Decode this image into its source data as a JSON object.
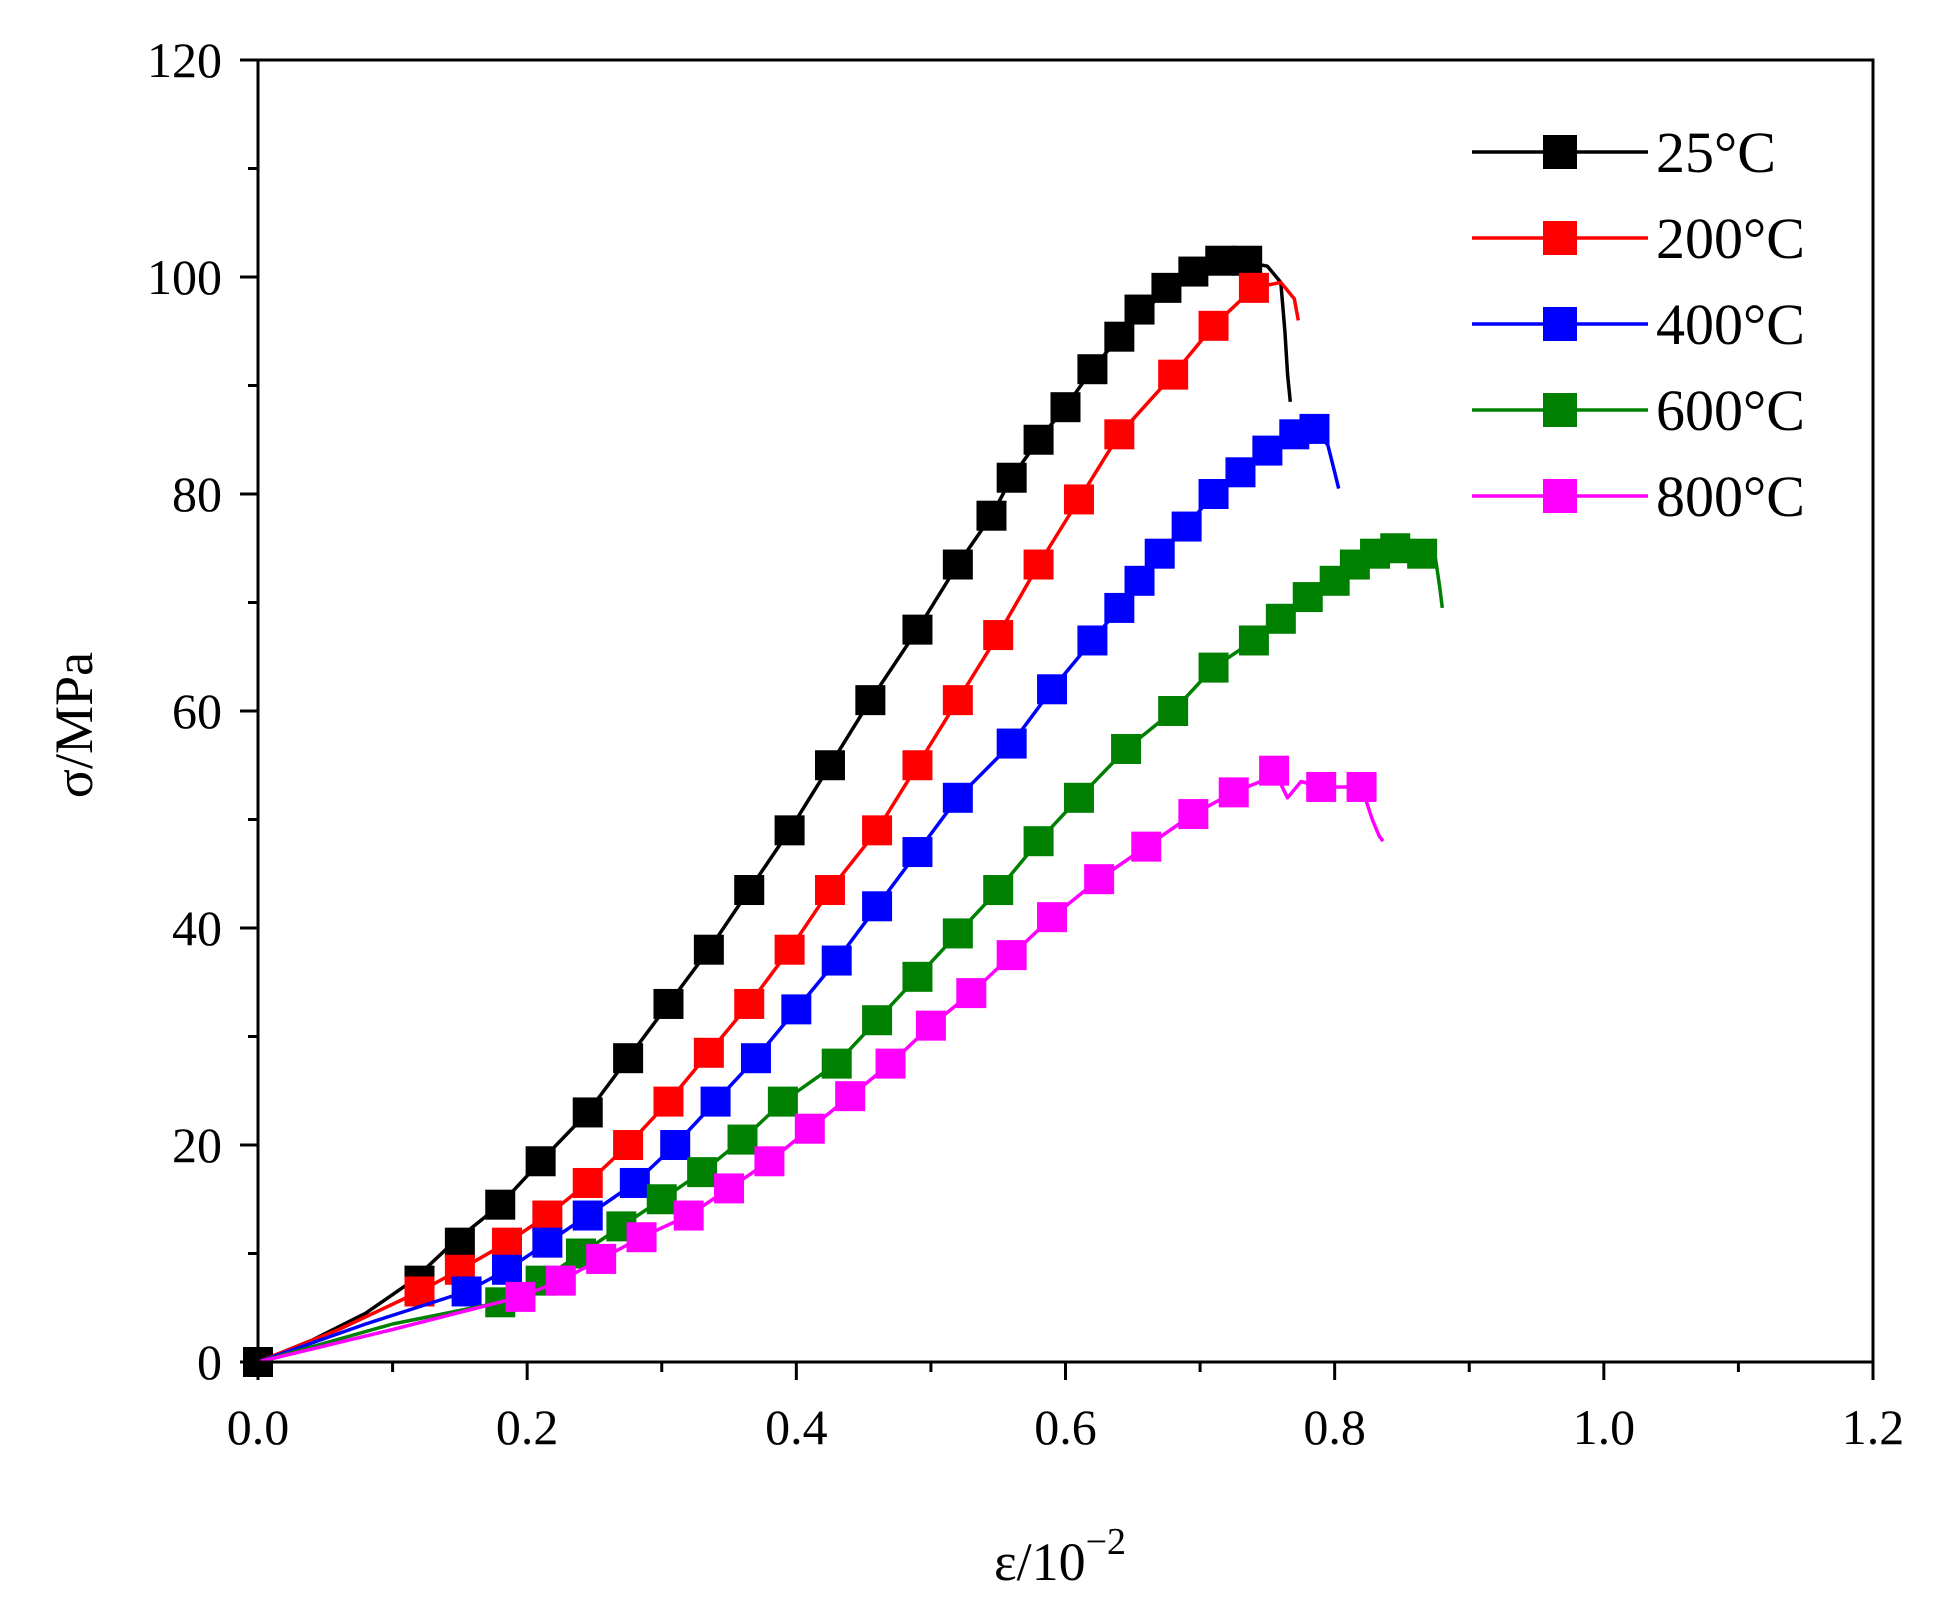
{
  "chart_data": {
    "type": "line",
    "title": "",
    "xlabel": "ε/10",
    "xlabel_exponent": "−2",
    "ylabel": "σ/MPa",
    "xlim": [
      0,
      1.2
    ],
    "ylim": [
      0,
      120
    ],
    "x_ticks": [
      "0.0",
      "0.2",
      "0.4",
      "0.6",
      "0.8",
      "1.0",
      "1.2"
    ],
    "y_ticks": [
      "0",
      "20",
      "40",
      "60",
      "80",
      "100",
      "120"
    ],
    "legend_position": "top-right",
    "series": [
      {
        "name": "25°C",
        "color": "#000000",
        "line": [
          [
            0.0,
            0
          ],
          [
            0.04,
            2
          ],
          [
            0.08,
            4.5
          ],
          [
            0.115,
            7.5
          ],
          [
            0.145,
            11
          ],
          [
            0.18,
            14.5
          ],
          [
            0.21,
            18.5
          ],
          [
            0.245,
            23
          ],
          [
            0.275,
            28
          ],
          [
            0.305,
            33
          ],
          [
            0.335,
            38
          ],
          [
            0.365,
            43.5
          ],
          [
            0.395,
            49
          ],
          [
            0.425,
            55
          ],
          [
            0.455,
            61
          ],
          [
            0.49,
            67.5
          ],
          [
            0.52,
            73.5
          ],
          [
            0.545,
            78
          ],
          [
            0.56,
            81.5
          ],
          [
            0.58,
            85
          ],
          [
            0.6,
            88
          ],
          [
            0.62,
            91.5
          ],
          [
            0.64,
            94.5
          ],
          [
            0.66,
            97
          ],
          [
            0.68,
            99.5
          ],
          [
            0.705,
            101
          ],
          [
            0.73,
            101.5
          ],
          [
            0.75,
            101
          ],
          [
            0.76,
            99.5
          ],
          [
            0.763,
            95
          ],
          [
            0.765,
            91
          ],
          [
            0.767,
            88.5
          ]
        ],
        "markers": [
          [
            0.0,
            0
          ],
          [
            0.12,
            7.5
          ],
          [
            0.15,
            11
          ],
          [
            0.18,
            14.5
          ],
          [
            0.21,
            18.5
          ],
          [
            0.245,
            23
          ],
          [
            0.275,
            28
          ],
          [
            0.305,
            33
          ],
          [
            0.335,
            38
          ],
          [
            0.365,
            43.5
          ],
          [
            0.395,
            49
          ],
          [
            0.425,
            55
          ],
          [
            0.455,
            61
          ],
          [
            0.49,
            67.5
          ],
          [
            0.52,
            73.5
          ],
          [
            0.545,
            78
          ],
          [
            0.56,
            81.5
          ],
          [
            0.58,
            85
          ],
          [
            0.6,
            88
          ],
          [
            0.62,
            91.5
          ],
          [
            0.64,
            94.5
          ],
          [
            0.655,
            97
          ],
          [
            0.675,
            99
          ],
          [
            0.695,
            100.5
          ],
          [
            0.715,
            101.5
          ],
          [
            0.735,
            101.5
          ]
        ]
      },
      {
        "name": "200°C",
        "color": "#ff0000",
        "line": [
          [
            0.0,
            0
          ],
          [
            0.06,
            3
          ],
          [
            0.12,
            6.5
          ],
          [
            0.15,
            8.5
          ],
          [
            0.185,
            11
          ],
          [
            0.215,
            13.5
          ],
          [
            0.245,
            16.5
          ],
          [
            0.275,
            20
          ],
          [
            0.305,
            24
          ],
          [
            0.335,
            28.5
          ],
          [
            0.365,
            33
          ],
          [
            0.395,
            38
          ],
          [
            0.425,
            43.5
          ],
          [
            0.46,
            49
          ],
          [
            0.49,
            55
          ],
          [
            0.52,
            61
          ],
          [
            0.55,
            67
          ],
          [
            0.58,
            73.5
          ],
          [
            0.61,
            79.5
          ],
          [
            0.64,
            85.5
          ],
          [
            0.68,
            91
          ],
          [
            0.71,
            95.5
          ],
          [
            0.74,
            99
          ],
          [
            0.76,
            99.5
          ],
          [
            0.77,
            98
          ],
          [
            0.773,
            96
          ]
        ],
        "markers": [
          [
            0.12,
            6.5
          ],
          [
            0.15,
            8.5
          ],
          [
            0.185,
            11
          ],
          [
            0.215,
            13.5
          ],
          [
            0.245,
            16.5
          ],
          [
            0.275,
            20
          ],
          [
            0.305,
            24
          ],
          [
            0.335,
            28.5
          ],
          [
            0.365,
            33
          ],
          [
            0.395,
            38
          ],
          [
            0.425,
            43.5
          ],
          [
            0.46,
            49
          ],
          [
            0.49,
            55
          ],
          [
            0.52,
            61
          ],
          [
            0.55,
            67
          ],
          [
            0.58,
            73.5
          ],
          [
            0.61,
            79.5
          ],
          [
            0.64,
            85.5
          ],
          [
            0.68,
            91
          ],
          [
            0.71,
            95.5
          ],
          [
            0.74,
            99
          ]
        ]
      },
      {
        "name": "400°C",
        "color": "#0000ff",
        "line": [
          [
            0.0,
            0
          ],
          [
            0.08,
            3.5
          ],
          [
            0.155,
            6.5
          ],
          [
            0.185,
            8.5
          ],
          [
            0.215,
            11
          ],
          [
            0.245,
            13.5
          ],
          [
            0.28,
            16.5
          ],
          [
            0.31,
            20
          ],
          [
            0.34,
            24
          ],
          [
            0.37,
            28
          ],
          [
            0.4,
            32.5
          ],
          [
            0.43,
            37
          ],
          [
            0.46,
            42
          ],
          [
            0.49,
            47
          ],
          [
            0.52,
            52
          ],
          [
            0.56,
            57
          ],
          [
            0.59,
            62
          ],
          [
            0.62,
            66.5
          ],
          [
            0.64,
            69.5
          ],
          [
            0.655,
            72
          ],
          [
            0.67,
            74.5
          ],
          [
            0.69,
            77
          ],
          [
            0.71,
            80
          ],
          [
            0.73,
            82
          ],
          [
            0.75,
            84
          ],
          [
            0.77,
            85.5
          ],
          [
            0.785,
            86
          ],
          [
            0.795,
            84.5
          ],
          [
            0.8,
            82
          ],
          [
            0.803,
            80.5
          ]
        ],
        "markers": [
          [
            0.155,
            6.5
          ],
          [
            0.185,
            8.5
          ],
          [
            0.215,
            11
          ],
          [
            0.245,
            13.5
          ],
          [
            0.28,
            16.5
          ],
          [
            0.31,
            20
          ],
          [
            0.34,
            24
          ],
          [
            0.37,
            28
          ],
          [
            0.4,
            32.5
          ],
          [
            0.43,
            37
          ],
          [
            0.46,
            42
          ],
          [
            0.49,
            47
          ],
          [
            0.52,
            52
          ],
          [
            0.56,
            57
          ],
          [
            0.59,
            62
          ],
          [
            0.62,
            66.5
          ],
          [
            0.64,
            69.5
          ],
          [
            0.655,
            72
          ],
          [
            0.67,
            74.5
          ],
          [
            0.69,
            77
          ],
          [
            0.71,
            80
          ],
          [
            0.73,
            82
          ],
          [
            0.75,
            84
          ],
          [
            0.77,
            85.5
          ],
          [
            0.785,
            86
          ]
        ]
      },
      {
        "name": "600°C",
        "color": "#008000",
        "line": [
          [
            0.0,
            0
          ],
          [
            0.1,
            3.5
          ],
          [
            0.18,
            5.5
          ],
          [
            0.21,
            7.5
          ],
          [
            0.24,
            10
          ],
          [
            0.27,
            12.5
          ],
          [
            0.3,
            15
          ],
          [
            0.33,
            17.5
          ],
          [
            0.36,
            20.5
          ],
          [
            0.39,
            24
          ],
          [
            0.43,
            27.5
          ],
          [
            0.46,
            31.5
          ],
          [
            0.49,
            35.5
          ],
          [
            0.52,
            39.5
          ],
          [
            0.55,
            43.5
          ],
          [
            0.58,
            48
          ],
          [
            0.61,
            52
          ],
          [
            0.645,
            56.5
          ],
          [
            0.68,
            60
          ],
          [
            0.71,
            64
          ],
          [
            0.74,
            66.5
          ],
          [
            0.76,
            68.5
          ],
          [
            0.78,
            70.5
          ],
          [
            0.8,
            72
          ],
          [
            0.82,
            73.5
          ],
          [
            0.84,
            74.5
          ],
          [
            0.86,
            75
          ],
          [
            0.875,
            74
          ],
          [
            0.878,
            71.5
          ],
          [
            0.88,
            69.5
          ]
        ],
        "markers": [
          [
            0.18,
            5.5
          ],
          [
            0.21,
            7.5
          ],
          [
            0.24,
            10
          ],
          [
            0.27,
            12.5
          ],
          [
            0.3,
            15
          ],
          [
            0.33,
            17.5
          ],
          [
            0.36,
            20.5
          ],
          [
            0.39,
            24
          ],
          [
            0.43,
            27.5
          ],
          [
            0.46,
            31.5
          ],
          [
            0.49,
            35.5
          ],
          [
            0.52,
            39.5
          ],
          [
            0.55,
            43.5
          ],
          [
            0.58,
            48
          ],
          [
            0.61,
            52
          ],
          [
            0.645,
            56.5
          ],
          [
            0.68,
            60
          ],
          [
            0.71,
            64
          ],
          [
            0.74,
            66.5
          ],
          [
            0.76,
            68.5
          ],
          [
            0.78,
            70.5
          ],
          [
            0.8,
            72
          ],
          [
            0.815,
            73.5
          ],
          [
            0.83,
            74.5
          ],
          [
            0.845,
            75
          ],
          [
            0.865,
            74.5
          ]
        ]
      },
      {
        "name": "800°C",
        "color": "#ff00ff",
        "line": [
          [
            0.0,
            0
          ],
          [
            0.1,
            3
          ],
          [
            0.195,
            6
          ],
          [
            0.225,
            7.5
          ],
          [
            0.255,
            9.5
          ],
          [
            0.285,
            11.5
          ],
          [
            0.32,
            13.5
          ],
          [
            0.35,
            16
          ],
          [
            0.38,
            18.5
          ],
          [
            0.41,
            21.5
          ],
          [
            0.44,
            24.5
          ],
          [
            0.47,
            27.5
          ],
          [
            0.5,
            31
          ],
          [
            0.53,
            34
          ],
          [
            0.56,
            37.5
          ],
          [
            0.59,
            41
          ],
          [
            0.625,
            44.5
          ],
          [
            0.66,
            47.5
          ],
          [
            0.695,
            50.5
          ],
          [
            0.725,
            52.5
          ],
          [
            0.745,
            53.5
          ],
          [
            0.755,
            54.5
          ],
          [
            0.765,
            52
          ],
          [
            0.775,
            53.5
          ],
          [
            0.79,
            53
          ],
          [
            0.82,
            53
          ],
          [
            0.828,
            50
          ],
          [
            0.833,
            48.5
          ],
          [
            0.836,
            48
          ]
        ],
        "markers": [
          [
            0.195,
            6
          ],
          [
            0.225,
            7.5
          ],
          [
            0.255,
            9.5
          ],
          [
            0.285,
            11.5
          ],
          [
            0.32,
            13.5
          ],
          [
            0.35,
            16
          ],
          [
            0.38,
            18.5
          ],
          [
            0.41,
            21.5
          ],
          [
            0.44,
            24.5
          ],
          [
            0.47,
            27.5
          ],
          [
            0.5,
            31
          ],
          [
            0.53,
            34
          ],
          [
            0.56,
            37.5
          ],
          [
            0.59,
            41
          ],
          [
            0.625,
            44.5
          ],
          [
            0.66,
            47.5
          ],
          [
            0.695,
            50.5
          ],
          [
            0.725,
            52.5
          ],
          [
            0.755,
            54.5
          ],
          [
            0.79,
            53
          ],
          [
            0.82,
            53
          ]
        ]
      }
    ]
  }
}
